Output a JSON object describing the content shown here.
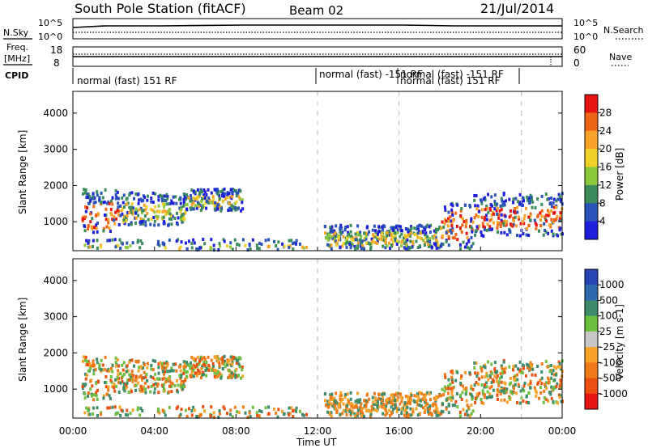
{
  "header": {
    "station": "South Pole Station (fitACF)",
    "beam": "Beam 02",
    "date": "21/Jul/2014"
  },
  "top_panels": {
    "nsky_label": "N.Sky",
    "nsearch_label": "N.Search",
    "freq_label_1": "Freq.",
    "freq_label_2": "[MHz]",
    "nave_label": "Nave",
    "cpid_label": "CPID",
    "noise_ticks_left": [
      "10^5",
      "10^0"
    ],
    "noise_ticks_right": [
      "10^5",
      "10^0"
    ],
    "freq_ticks": [
      "18",
      "8"
    ],
    "nave_ticks": [
      "60",
      "0"
    ],
    "cpid_segments": [
      {
        "label": "normal (fast) 151 RF"
      },
      {
        "label": "normal (fast) -151 RF"
      },
      {
        "label": "normal (fast) -151 RF"
      },
      {
        "label": "normal (fast) 151 RF"
      }
    ]
  },
  "chart_data": [
    {
      "type": "heatmap",
      "name": "power",
      "ylabel": "Slant Range [km]",
      "xlabel": "Time UT",
      "x_ticks": [
        "00:00",
        "04:00",
        "08:00",
        "12:00",
        "16:00",
        "20:00",
        "00:00"
      ],
      "y_ticks": [
        1000,
        2000,
        3000,
        4000
      ],
      "ylim": [
        200,
        4600
      ],
      "xlim_hours": [
        0,
        24
      ],
      "colorbar_label": "Power [dB]",
      "colorbar_ticks": [
        "4",
        "8",
        "12",
        "16",
        "20",
        "24",
        "28"
      ],
      "colorbar_colors": [
        "#1e1edc",
        "#2a55b8",
        "#3a8c5a",
        "#8cc83c",
        "#f0d22a",
        "#f7a32a",
        "#f06418",
        "#e61414"
      ],
      "dashed_lines_hours": [
        12,
        16,
        22
      ]
    },
    {
      "type": "heatmap",
      "name": "velocity",
      "ylabel": "Slant Range [km]",
      "xlabel": "Time UT",
      "x_ticks": [
        "00:00",
        "04:00",
        "08:00",
        "12:00",
        "16:00",
        "20:00",
        "00:00"
      ],
      "y_ticks": [
        1000,
        2000,
        3000,
        4000
      ],
      "ylim": [
        200,
        4600
      ],
      "xlim_hours": [
        0,
        24
      ],
      "colorbar_label": "Velocity [m s-1]",
      "colorbar_ticks": [
        "1000",
        "500",
        "100",
        "25",
        "-25",
        "-100",
        "-500",
        "-1000"
      ],
      "colorbar_colors": [
        "#2845b4",
        "#2f6ab0",
        "#3a8c6a",
        "#6cc040",
        "#c8c8c8",
        "#f7a32a",
        "#f07a1a",
        "#ec5010",
        "#e61414"
      ],
      "dashed_lines_hours": [
        12,
        16,
        22
      ]
    }
  ]
}
